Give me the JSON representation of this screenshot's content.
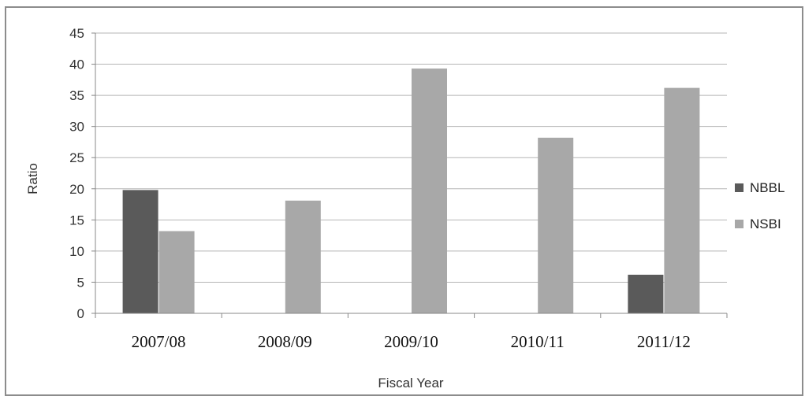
{
  "chart_data": {
    "type": "bar",
    "title": "",
    "xlabel": "Fiscal Year",
    "ylabel": "Ratio",
    "categories": [
      "2007/08",
      "2008/09",
      "2009/10",
      "2010/11",
      "2011/12"
    ],
    "ylim": [
      0,
      45
    ],
    "yticks": [
      0,
      5,
      10,
      15,
      20,
      25,
      30,
      35,
      40,
      45
    ],
    "grid": true,
    "legend_position": "right",
    "series": [
      {
        "name": "NBBL",
        "color": "#5a5a5a",
        "values": [
          19.8,
          null,
          null,
          null,
          6.2
        ]
      },
      {
        "name": "NSBI",
        "color": "#a8a8a8",
        "values": [
          13.2,
          18.1,
          39.3,
          28.2,
          36.2
        ]
      }
    ]
  }
}
